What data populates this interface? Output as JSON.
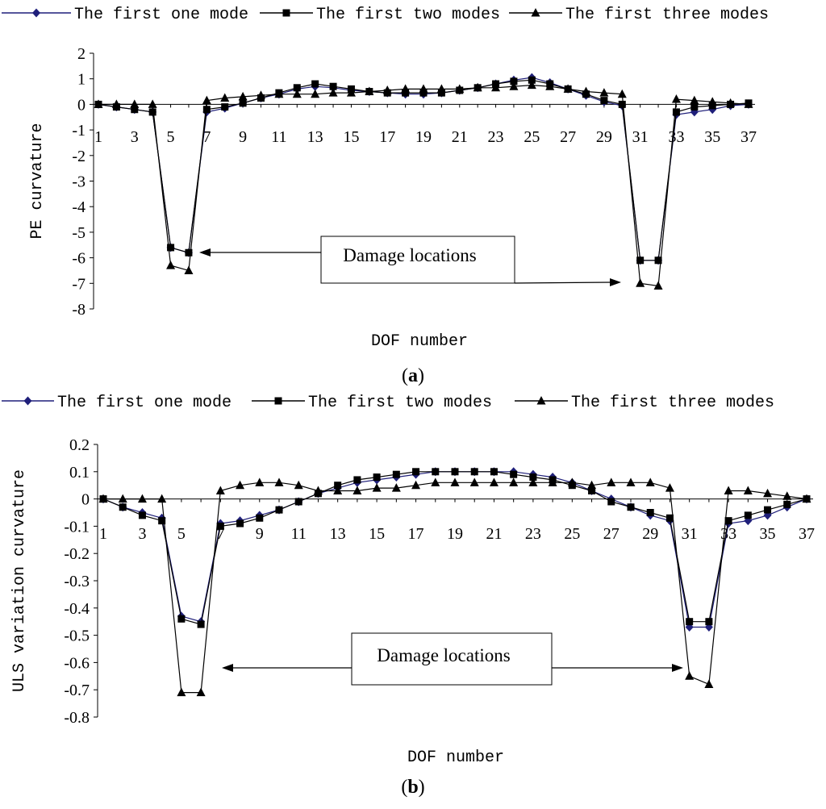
{
  "chart_data": [
    {
      "type": "line",
      "panel_label": "a",
      "xlabel": "DOF number",
      "ylabel": "PE curvature",
      "xlim": [
        1,
        37
      ],
      "ylim": [
        -8,
        2
      ],
      "yticks": [
        2,
        1,
        0,
        -1,
        -2,
        -3,
        -4,
        -5,
        -6,
        -7,
        -8
      ],
      "xtick_labels": [
        "1",
        "3",
        "5",
        "7",
        "9",
        "11",
        "13",
        "15",
        "17",
        "19",
        "21",
        "23",
        "25",
        "27",
        "29",
        "31",
        "33",
        "35",
        "37"
      ],
      "legend_position": "top",
      "annotation": "Damage locations",
      "series": [
        {
          "name": "The first one mode",
          "marker": "diamond",
          "color": "#1f1f7a",
          "values": [
            0,
            -0.1,
            -0.2,
            -0.3,
            -5.6,
            -5.8,
            -0.3,
            -0.15,
            0.05,
            0.25,
            0.4,
            0.6,
            0.7,
            0.65,
            0.55,
            0.5,
            0.45,
            0.4,
            0.4,
            0.45,
            0.55,
            0.65,
            0.8,
            0.95,
            1.05,
            0.85,
            0.6,
            0.35,
            0.1,
            -0.05,
            -6.1,
            -6.1,
            -0.4,
            -0.3,
            -0.2,
            -0.05,
            0
          ]
        },
        {
          "name": "The first two modes",
          "marker": "square",
          "color": "#000000",
          "values": [
            0,
            -0.1,
            -0.2,
            -0.3,
            -5.6,
            -5.8,
            -0.2,
            -0.1,
            0.05,
            0.25,
            0.45,
            0.65,
            0.8,
            0.7,
            0.6,
            0.5,
            0.45,
            0.45,
            0.45,
            0.45,
            0.55,
            0.65,
            0.8,
            0.9,
            0.95,
            0.8,
            0.6,
            0.4,
            0.15,
            0,
            -6.1,
            -6.1,
            -0.3,
            -0.1,
            -0.05,
            0,
            0.05
          ]
        },
        {
          "name": "The first three modes",
          "marker": "triangle",
          "color": "#000000",
          "values": [
            0,
            0,
            0,
            0,
            -6.3,
            -6.5,
            0.15,
            0.25,
            0.3,
            0.35,
            0.4,
            0.4,
            0.4,
            0.45,
            0.45,
            0.5,
            0.55,
            0.6,
            0.6,
            0.6,
            0.6,
            0.65,
            0.65,
            0.7,
            0.75,
            0.7,
            0.6,
            0.5,
            0.45,
            0.4,
            -7.0,
            -7.1,
            0.2,
            0.15,
            0.1,
            0.05,
            0
          ]
        }
      ]
    },
    {
      "type": "line",
      "panel_label": "b",
      "xlabel": "DOF number",
      "ylabel": "ULS variation curvature",
      "xlim": [
        1,
        37
      ],
      "ylim": [
        -0.8,
        0.2
      ],
      "yticks": [
        "0.2",
        "0.1",
        "0",
        "-0.1",
        "-0.2",
        "-0.3",
        "-0.4",
        "-0.5",
        "-0.6",
        "-0.7",
        "-0.8"
      ],
      "xtick_labels": [
        "1",
        "3",
        "5",
        "7",
        "9",
        "11",
        "13",
        "15",
        "17",
        "19",
        "21",
        "23",
        "25",
        "27",
        "29",
        "31",
        "33",
        "35",
        "37"
      ],
      "legend_position": "top",
      "annotation": "Damage locations",
      "series": [
        {
          "name": "The first one mode",
          "marker": "diamond",
          "color": "#1f1f7a",
          "values": [
            0,
            -0.03,
            -0.05,
            -0.07,
            -0.43,
            -0.45,
            -0.09,
            -0.08,
            -0.06,
            -0.04,
            -0.01,
            0.02,
            0.04,
            0.06,
            0.07,
            0.08,
            0.09,
            0.1,
            0.1,
            0.1,
            0.1,
            0.1,
            0.09,
            0.08,
            0.06,
            0.03,
            0,
            -0.03,
            -0.06,
            -0.08,
            -0.47,
            -0.47,
            -0.09,
            -0.08,
            -0.06,
            -0.03,
            0
          ]
        },
        {
          "name": "The first two modes",
          "marker": "square",
          "color": "#000000",
          "values": [
            0,
            -0.03,
            -0.06,
            -0.08,
            -0.44,
            -0.46,
            -0.1,
            -0.09,
            -0.07,
            -0.04,
            -0.01,
            0.02,
            0.05,
            0.07,
            0.08,
            0.09,
            0.1,
            0.1,
            0.1,
            0.1,
            0.1,
            0.09,
            0.08,
            0.07,
            0.05,
            0.03,
            -0.01,
            -0.03,
            -0.05,
            -0.07,
            -0.45,
            -0.45,
            -0.08,
            -0.06,
            -0.04,
            -0.02,
            0
          ]
        },
        {
          "name": "The first three modes",
          "marker": "triangle",
          "color": "#000000",
          "values": [
            0,
            0,
            0,
            0,
            -0.71,
            -0.71,
            0.03,
            0.05,
            0.06,
            0.06,
            0.05,
            0.03,
            0.03,
            0.03,
            0.04,
            0.04,
            0.05,
            0.06,
            0.06,
            0.06,
            0.06,
            0.06,
            0.06,
            0.06,
            0.06,
            0.05,
            0.06,
            0.06,
            0.06,
            0.04,
            -0.65,
            -0.68,
            0.03,
            0.03,
            0.02,
            0.01,
            0
          ]
        }
      ]
    }
  ]
}
